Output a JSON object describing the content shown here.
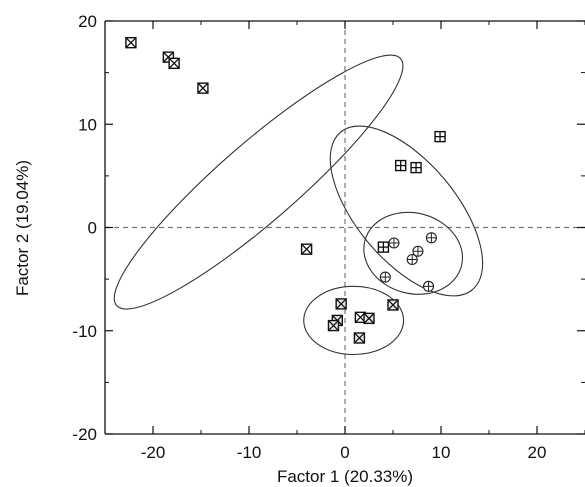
{
  "chart_data": {
    "type": "scatter",
    "xlabel": "Factor 1 (20.33%)",
    "ylabel": "Factor 2 (19.04%)",
    "xlim": [
      -25,
      25
    ],
    "ylim": [
      -20,
      20
    ],
    "xticks": [
      -20,
      -10,
      0,
      10,
      20
    ],
    "yticks": [
      -20,
      -10,
      0,
      10,
      20
    ],
    "grid": false,
    "reference_lines": {
      "x": 0,
      "y": 0,
      "style": "dashed"
    },
    "series": [
      {
        "marker": "boxed-x",
        "points": [
          [
            -22.3,
            17.9
          ],
          [
            -18.4,
            16.5
          ],
          [
            -17.8,
            15.9
          ],
          [
            -14.8,
            13.5
          ],
          [
            -4.0,
            -2.1
          ],
          [
            1.6,
            -8.7
          ]
        ]
      },
      {
        "marker": "boxed-plus",
        "points": [
          [
            5.8,
            6.0
          ],
          [
            7.4,
            5.8
          ],
          [
            9.9,
            8.8
          ],
          [
            4.0,
            -1.9
          ]
        ]
      },
      {
        "marker": "circled-plus",
        "points": [
          [
            5.1,
            -1.5
          ],
          [
            4.2,
            -4.8
          ],
          [
            7.0,
            -3.1
          ],
          [
            7.6,
            -2.3
          ],
          [
            9.0,
            -1.0
          ],
          [
            8.7,
            -5.7
          ]
        ]
      },
      {
        "marker": "boxed-cross-light",
        "points": [
          [
            -0.4,
            -7.4
          ],
          [
            -0.8,
            -9.0
          ],
          [
            -1.2,
            -9.5
          ],
          [
            2.5,
            -8.8
          ],
          [
            1.5,
            -10.7
          ],
          [
            5.0,
            -7.5
          ]
        ]
      }
    ],
    "group_ellipses": [
      {
        "cx": -9.0,
        "cy": 4.4,
        "rx": 19.6,
        "ry": 3.8,
        "angle_deg": -41
      },
      {
        "cx": 6.4,
        "cy": 1.6,
        "rx": 10.7,
        "ry": 4.8,
        "angle_deg": 50
      },
      {
        "cx": 7.1,
        "cy": -2.5,
        "rx": 5.2,
        "ry": 3.9,
        "angle_deg": 15
      },
      {
        "cx": 0.9,
        "cy": -9.0,
        "rx": 5.2,
        "ry": 3.3,
        "angle_deg": 0
      }
    ]
  }
}
